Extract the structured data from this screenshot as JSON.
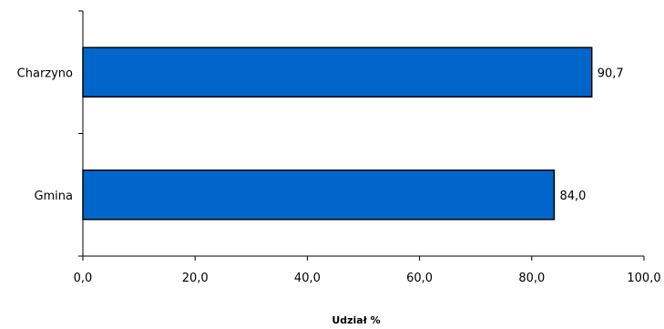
{
  "chart_data": {
    "type": "bar",
    "orientation": "horizontal",
    "categories": [
      "Charzyno",
      "Gmina"
    ],
    "values": [
      90.7,
      84.0
    ],
    "value_labels": [
      "90,7",
      "84,0"
    ],
    "xlabel": "Udział %",
    "xlim": [
      0,
      100
    ],
    "x_ticks": [
      0,
      20,
      40,
      60,
      80,
      100
    ],
    "x_tick_labels": [
      "0,0",
      "20,0",
      "40,0",
      "60,0",
      "80,0",
      "100,0"
    ],
    "grid": false,
    "legend": "none",
    "bar_color": "#0066cc",
    "bar_edge_color": "#000000"
  }
}
